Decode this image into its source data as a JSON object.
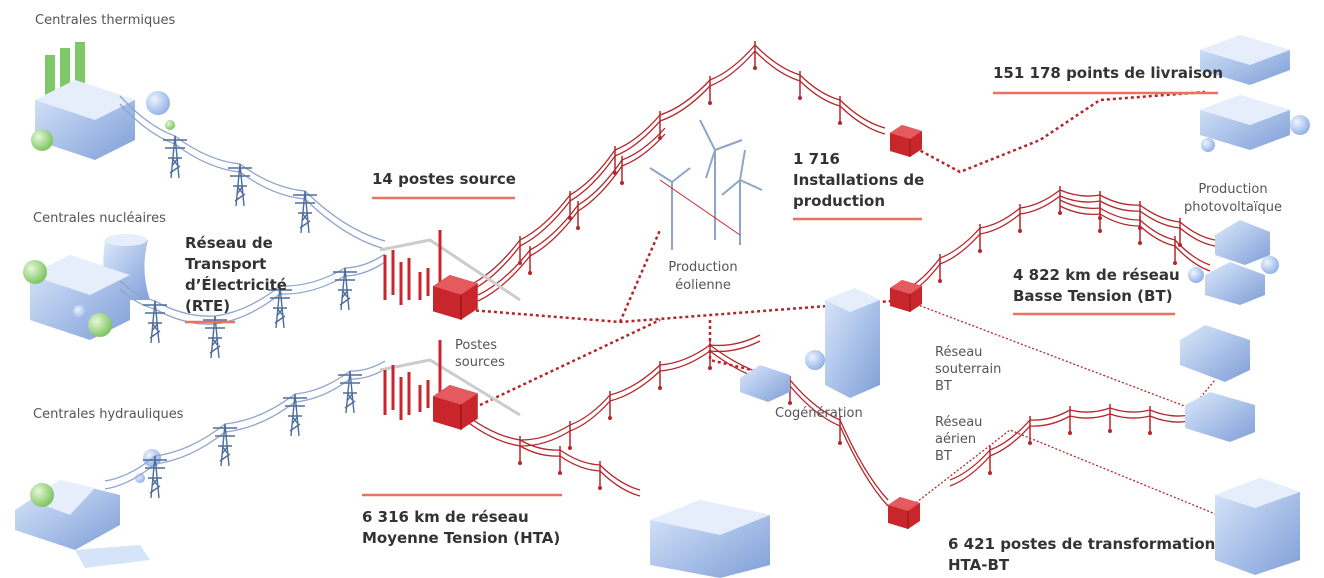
{
  "plants": {
    "thermal": "Centrales thermiques",
    "nuclear": "Centrales nucléaires",
    "hydro": "Centrales hydrauliques"
  },
  "labels": {
    "rte": [
      "Réseau de",
      "Transport",
      "d’Électricité",
      "(RTE)"
    ],
    "source_stations": "14 postes source",
    "source_posts": [
      "Postes",
      "sources"
    ],
    "wind": [
      "Production",
      "éolienne"
    ],
    "installations": [
      "1 716",
      "Installations de",
      "production"
    ],
    "delivery": "151 178 points de livraison",
    "solar": [
      "Production",
      "photovoltaïque"
    ],
    "bt": [
      "4 822 km de réseau",
      "Basse Tension (BT)"
    ],
    "underground": [
      "Réseau",
      "souterrain",
      "BT"
    ],
    "aerial": [
      "Réseau",
      "aérien",
      "BT"
    ],
    "cogen": "Cogénération",
    "hta": [
      "6 316 km de réseau",
      "Moyenne Tension (HTA)"
    ],
    "transformers": [
      "6 421 postes de transformation",
      "HTA-BT"
    ]
  }
}
